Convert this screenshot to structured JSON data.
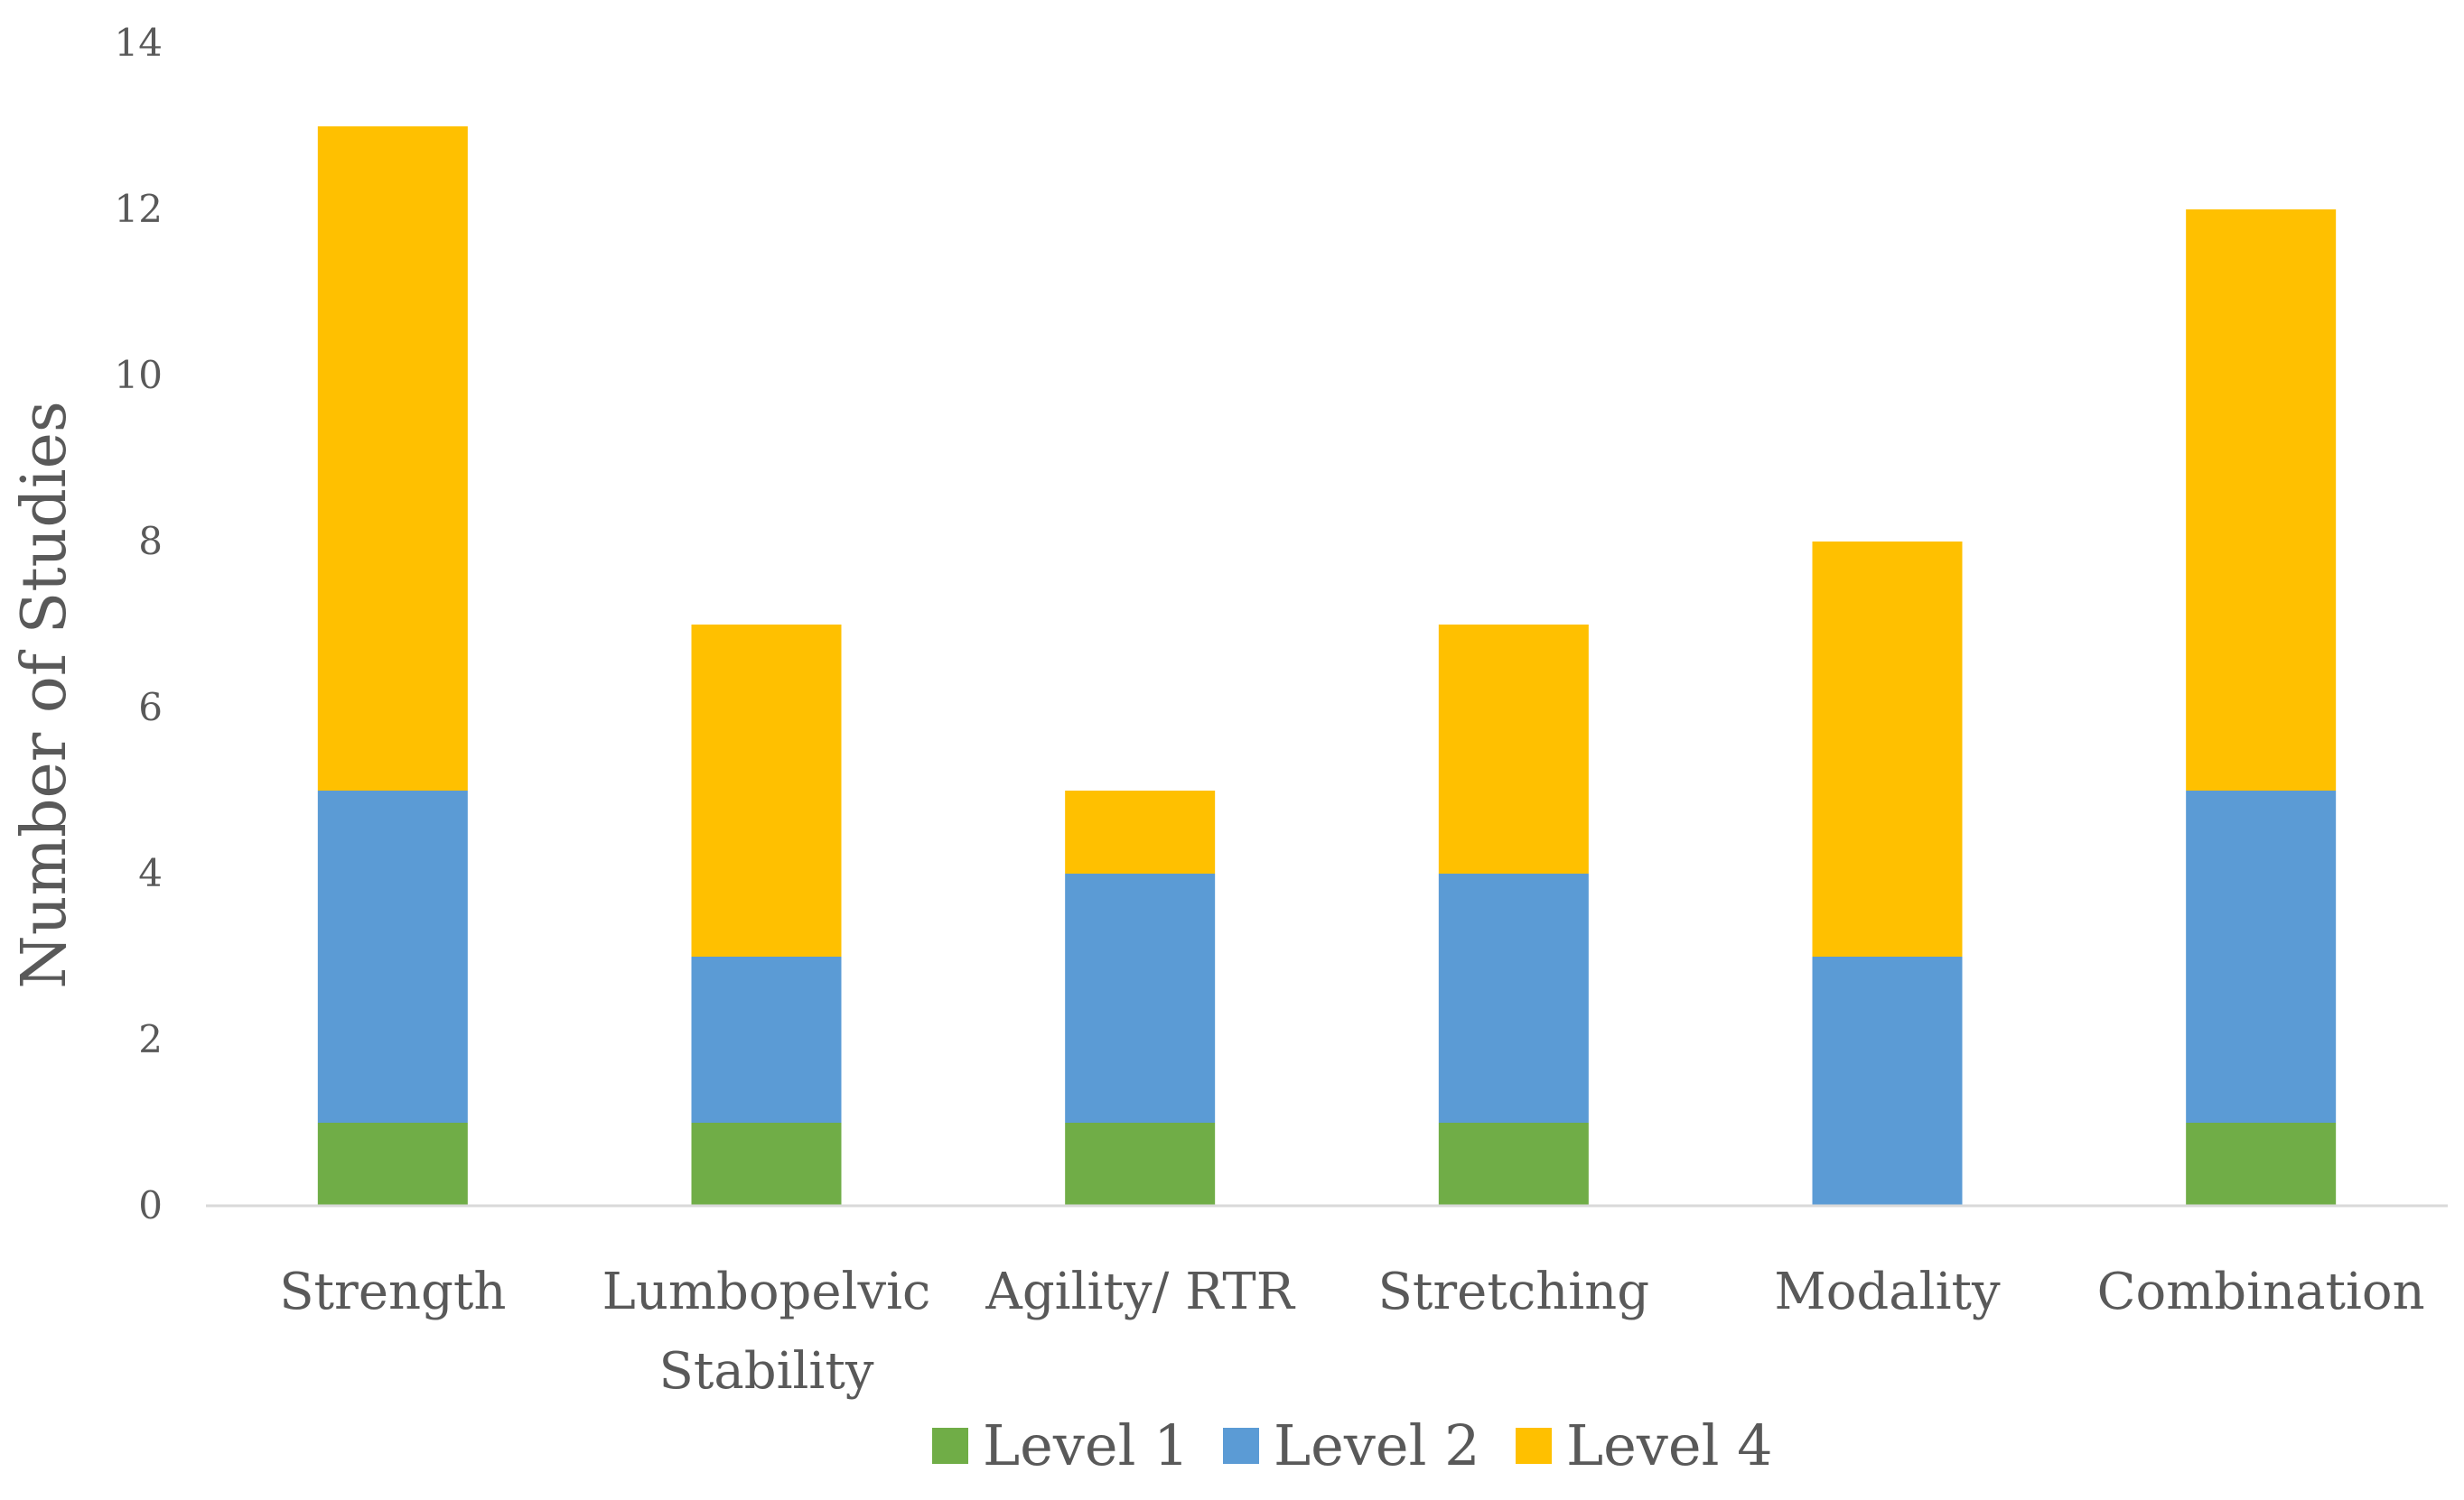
{
  "chart_data": {
    "type": "bar",
    "stacked": true,
    "title": "",
    "xlabel": "",
    "ylabel": "Number of Studies",
    "ylim": [
      0,
      14
    ],
    "yticks": [
      0,
      2,
      4,
      6,
      8,
      10,
      12,
      14
    ],
    "grid": false,
    "legend_position": "bottom",
    "categories": [
      [
        "Strength"
      ],
      [
        "Lumbopelvic",
        "Stability"
      ],
      [
        "Agility/ RTR"
      ],
      [
        "Stretching"
      ],
      [
        "Modality"
      ],
      [
        "Combination"
      ]
    ],
    "series": [
      {
        "name": "Level 1",
        "color": "#70AD47",
        "values": [
          1,
          1,
          1,
          1,
          0,
          1
        ]
      },
      {
        "name": "Level 2",
        "color": "#5B9BD5",
        "values": [
          4,
          2,
          3,
          3,
          3,
          4
        ]
      },
      {
        "name": "Level 4",
        "color": "#FFC000",
        "values": [
          8,
          4,
          1,
          3,
          5,
          7
        ]
      }
    ]
  }
}
